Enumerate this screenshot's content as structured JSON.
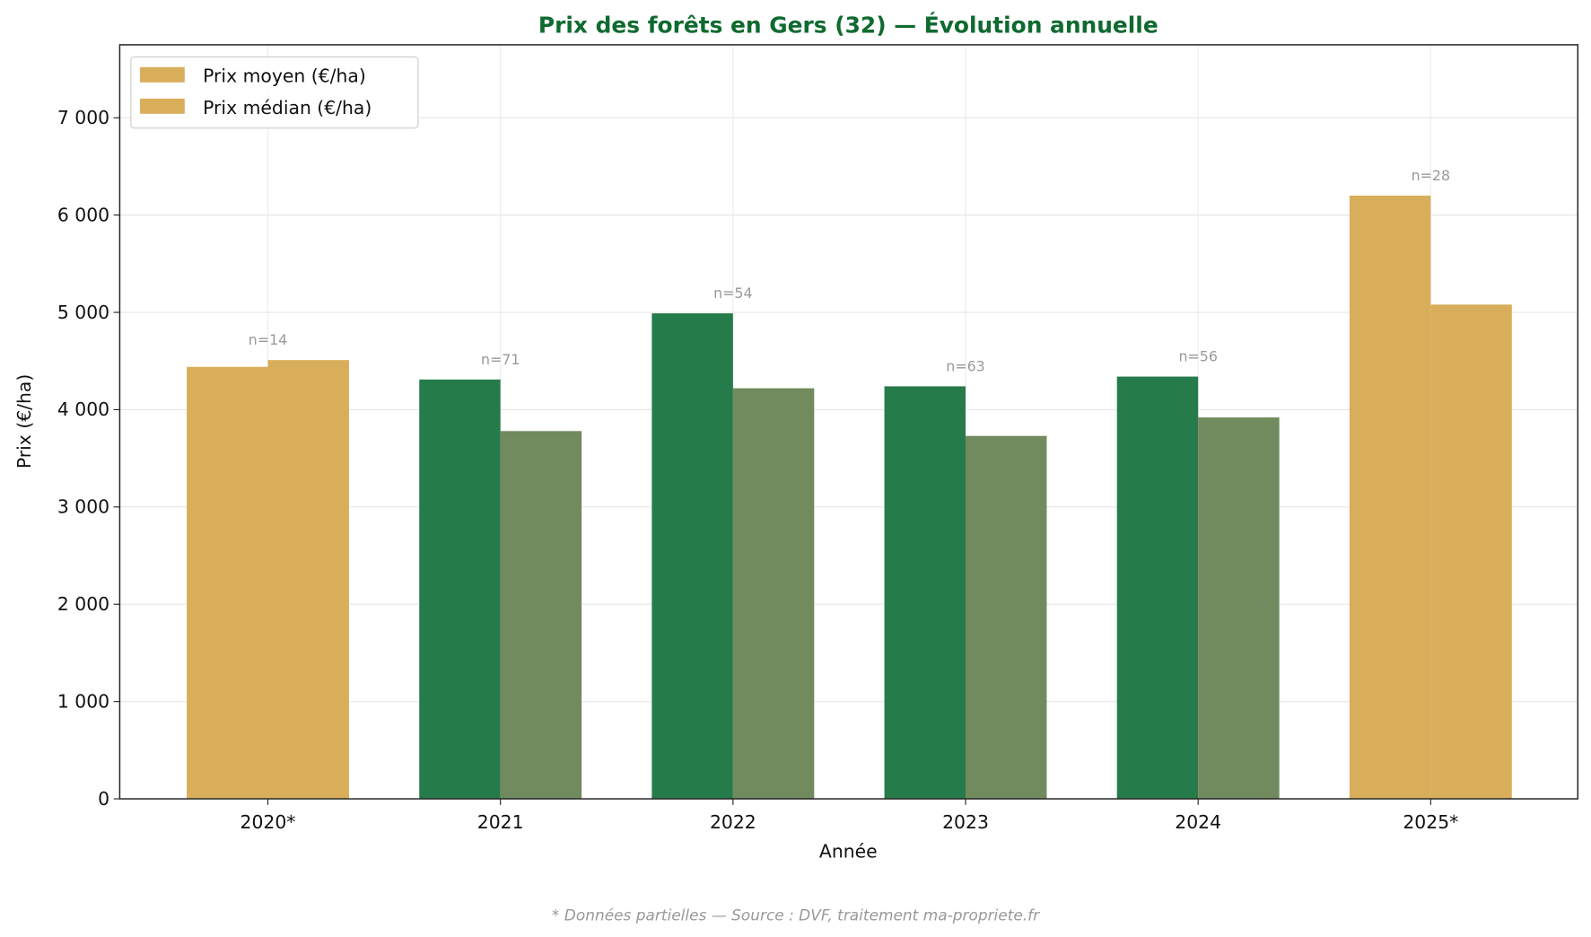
{
  "chart_data": {
    "type": "bar",
    "title": "Prix des forêts en Gers (32) — Évolution annuelle",
    "xlabel": "Année",
    "ylabel": "Prix (€/ha)",
    "categories": [
      "2020*",
      "2021",
      "2022",
      "2023",
      "2024",
      "2025*"
    ],
    "partial": [
      true,
      false,
      false,
      false,
      false,
      true
    ],
    "counts": [
      "n=14",
      "n=71",
      "n=54",
      "n=63",
      "n=56",
      "n=28"
    ],
    "series": [
      {
        "name": "Prix moyen (€/ha)",
        "values": [
          4440,
          4310,
          4990,
          4240,
          4340,
          6200
        ]
      },
      {
        "name": "Prix médian (€/ha)",
        "values": [
          4510,
          3780,
          4220,
          3730,
          3920,
          5080
        ]
      }
    ],
    "ylim": [
      0,
      7750
    ],
    "yticks": [
      0,
      1000,
      2000,
      3000,
      4000,
      5000,
      6000,
      7000
    ],
    "ytick_labels": [
      "0",
      "1 000",
      "2 000",
      "3 000",
      "4 000",
      "5 000",
      "6 000",
      "7 000"
    ],
    "grid": true,
    "legend_position": "top-left",
    "footnote": "* Données partielles — Source : DVF, traitement ma-propriete.fr",
    "colors": {
      "title": "#0f6a2f",
      "mean": "#267b4a",
      "median": "#718a5e",
      "partial": "#d9ae5b",
      "count_label": "#999999",
      "footnote": "#999999"
    }
  }
}
